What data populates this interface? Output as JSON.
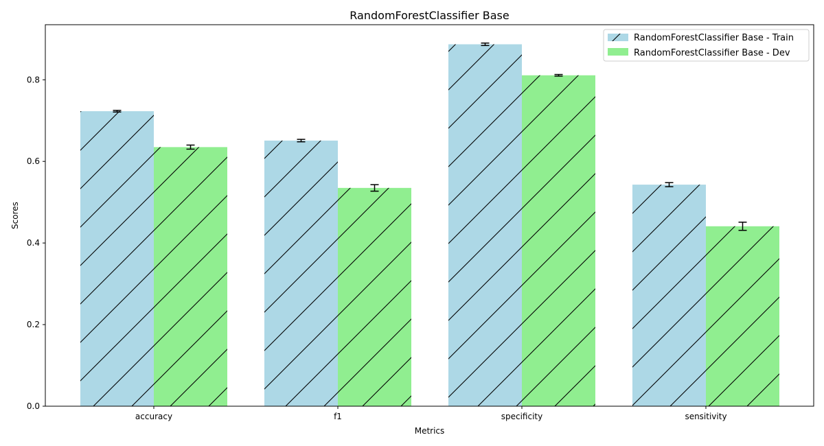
{
  "chart_data": {
    "type": "bar",
    "title": "RandomForestClassifier Base",
    "xlabel": "Metrics",
    "ylabel": "Scores",
    "categories": [
      "accuracy",
      "f1",
      "specificity",
      "sensitivity"
    ],
    "ylim": [
      0,
      0.935
    ],
    "yticks": [
      0.0,
      0.2,
      0.4,
      0.6,
      0.8
    ],
    "ytick_labels": [
      "0.0",
      "0.2",
      "0.4",
      "0.6",
      "0.8"
    ],
    "legend_position": "top-right",
    "hatch": "/",
    "series": [
      {
        "name": "RandomForestClassifier Base - Train",
        "color": "#add8e6",
        "values": [
          0.723,
          0.651,
          0.887,
          0.543
        ],
        "errors": [
          0.002,
          0.003,
          0.003,
          0.005
        ]
      },
      {
        "name": "RandomForestClassifier Base - Dev",
        "color": "#90ee90",
        "values": [
          0.635,
          0.535,
          0.811,
          0.441
        ],
        "errors": [
          0.005,
          0.008,
          0.002,
          0.01
        ]
      }
    ]
  }
}
